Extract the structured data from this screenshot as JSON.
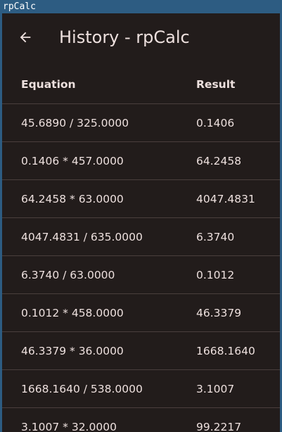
{
  "window": {
    "title": "rpCalc"
  },
  "appbar": {
    "title": "History - rpCalc",
    "back_icon": "arrow-left-icon"
  },
  "table": {
    "headers": [
      "Equation",
      "Result"
    ],
    "rows": [
      [
        "45.6890 / 325.0000",
        "0.1406"
      ],
      [
        "0.1406 * 457.0000",
        "64.2458"
      ],
      [
        "64.2458 * 63.0000",
        "4047.4831"
      ],
      [
        "4047.4831 / 635.0000",
        "6.3740"
      ],
      [
        "6.3740 / 63.0000",
        "0.1012"
      ],
      [
        "0.1012 * 458.0000",
        "46.3379"
      ],
      [
        "46.3379 * 36.0000",
        "1668.1640"
      ],
      [
        "1668.1640 / 538.0000",
        "3.1007"
      ],
      [
        "3.1007 * 32.0000",
        "99.2217"
      ]
    ]
  }
}
